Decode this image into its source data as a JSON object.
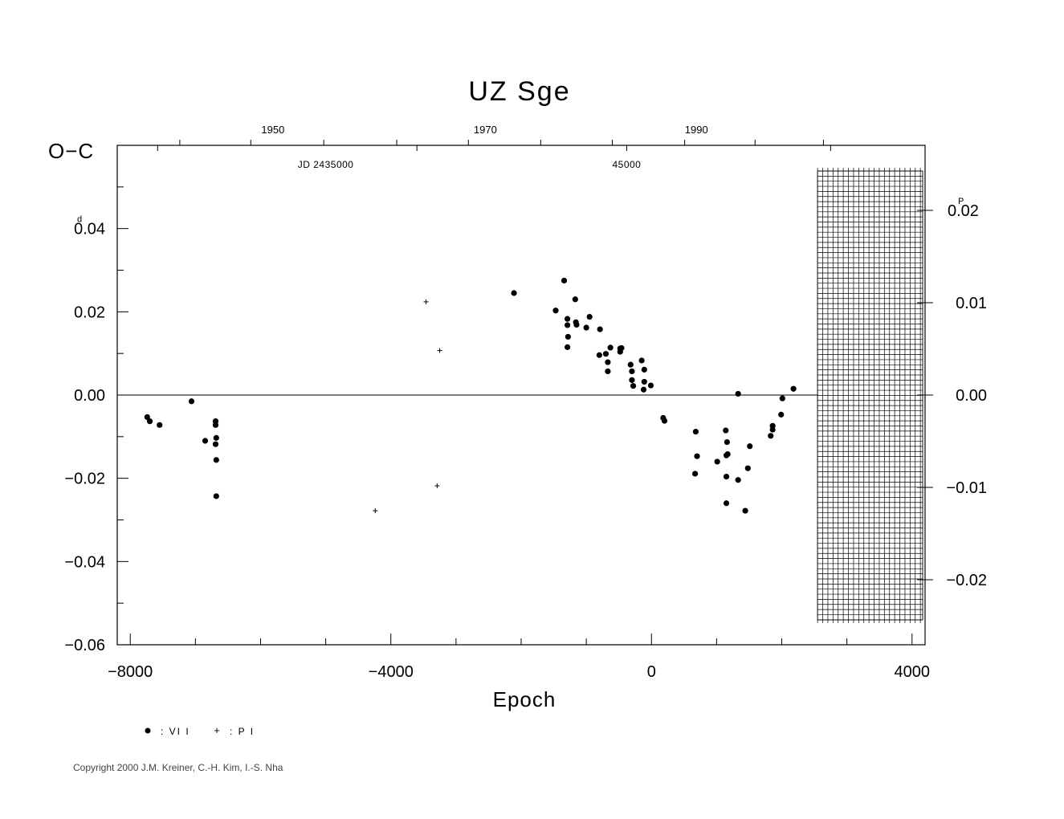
{
  "chart_data": {
    "type": "scatter",
    "title": "UZ Sge",
    "ylabel": "O−C",
    "xlabel": "Epoch",
    "xlim": [
      -8200,
      4200
    ],
    "ylim": [
      -0.06,
      0.06
    ],
    "x_ticks": [
      -8000,
      -4000,
      0,
      4000
    ],
    "x_tick_labels": [
      "−8000",
      "−4000",
      "0",
      "4000"
    ],
    "y_ticks": [
      0.04,
      0.02,
      0.0,
      -0.02,
      -0.04,
      -0.06
    ],
    "y_tick_labels": [
      "0.04",
      "0.02",
      "0.00",
      "−0.02",
      "−0.04",
      "−0.06"
    ],
    "y_unit_mark": "d",
    "y_first_label": {
      "lead": "0",
      "rest": ".04"
    },
    "right_ticks": [
      0.02,
      0.01,
      0.0,
      -0.01,
      -0.02
    ],
    "right_tick_labels": [
      "0.02",
      "0.01",
      "0.00",
      "−0.01",
      "−0.02"
    ],
    "right_unit_mark": "P",
    "right_first_label": {
      "lead": "0",
      "rest": ".02"
    },
    "top_year_labels": [
      {
        "label": "1950",
        "epoch": -5810
      },
      {
        "label": "1970",
        "epoch": -2550
      },
      {
        "label": "1990",
        "epoch": 690
      }
    ],
    "top_jd_labels": [
      {
        "label": "JD  2435000",
        "epoch": -5000
      },
      {
        "label": "45000",
        "epoch": -380
      }
    ],
    "future_epoch_start": 2550,
    "legend": [
      {
        "symbol": "dot",
        "label": ": VI I"
      },
      {
        "symbol": "plus",
        "label": ": P I"
      }
    ],
    "series": [
      {
        "name": "VI",
        "marker": "dot",
        "points": [
          [
            -7740,
            -0.0053
          ],
          [
            -7700,
            -0.0063
          ],
          [
            -7550,
            -0.0072
          ],
          [
            -7060,
            -0.0015
          ],
          [
            -6850,
            -0.011
          ],
          [
            -6690,
            -0.0063
          ],
          [
            -6690,
            -0.0072
          ],
          [
            -6680,
            -0.0103
          ],
          [
            -6690,
            -0.0118
          ],
          [
            -6680,
            -0.0156
          ],
          [
            -6680,
            -0.0243
          ],
          [
            -2110,
            0.0245
          ],
          [
            -1470,
            0.0203
          ],
          [
            -1340,
            0.0275
          ],
          [
            -1290,
            0.0183
          ],
          [
            -1290,
            0.0168
          ],
          [
            -1280,
            0.014
          ],
          [
            -1290,
            0.0115
          ],
          [
            -1170,
            0.023
          ],
          [
            -1160,
            0.0175
          ],
          [
            -1150,
            0.0169
          ],
          [
            -1000,
            0.0162
          ],
          [
            -950,
            0.0188
          ],
          [
            -790,
            0.0158
          ],
          [
            -800,
            0.0096
          ],
          [
            -700,
            0.0099
          ],
          [
            -670,
            0.0079
          ],
          [
            -670,
            0.0057
          ],
          [
            -630,
            0.0114
          ],
          [
            -480,
            0.0112
          ],
          [
            -460,
            0.0113
          ],
          [
            -480,
            0.0104
          ],
          [
            -320,
            0.0073
          ],
          [
            -300,
            0.0057
          ],
          [
            -300,
            0.0036
          ],
          [
            -280,
            0.0022
          ],
          [
            -150,
            0.0083
          ],
          [
            -110,
            0.0061
          ],
          [
            -110,
            0.0032
          ],
          [
            -120,
            0.0013
          ],
          [
            -10,
            0.0023
          ],
          [
            180,
            -0.0055
          ],
          [
            200,
            -0.0062
          ],
          [
            670,
            -0.0189
          ],
          [
            680,
            -0.0088
          ],
          [
            700,
            -0.0147
          ],
          [
            1010,
            -0.016
          ],
          [
            1140,
            -0.0085
          ],
          [
            1160,
            -0.0113
          ],
          [
            1150,
            -0.0145
          ],
          [
            1170,
            -0.0142
          ],
          [
            1150,
            -0.0196
          ],
          [
            1150,
            -0.026
          ],
          [
            1330,
            0.0003
          ],
          [
            1330,
            -0.0204
          ],
          [
            1440,
            -0.0278
          ],
          [
            1480,
            -0.0176
          ],
          [
            1510,
            -0.0123
          ],
          [
            1830,
            -0.0098
          ],
          [
            1860,
            -0.0074
          ],
          [
            1860,
            -0.0083
          ],
          [
            1990,
            -0.0047
          ],
          [
            2010,
            -0.0008
          ],
          [
            2180,
            0.0015
          ]
        ]
      },
      {
        "name": "PI",
        "marker": "plus",
        "points": [
          [
            -3460,
            0.0224
          ],
          [
            -3250,
            0.0107
          ],
          [
            -3290,
            -0.0218
          ],
          [
            -4240,
            -0.0278
          ]
        ]
      }
    ]
  },
  "copyright": "Copyright 2000 J.M. Kreiner, C.-H. Kim, I.-S. Nha"
}
